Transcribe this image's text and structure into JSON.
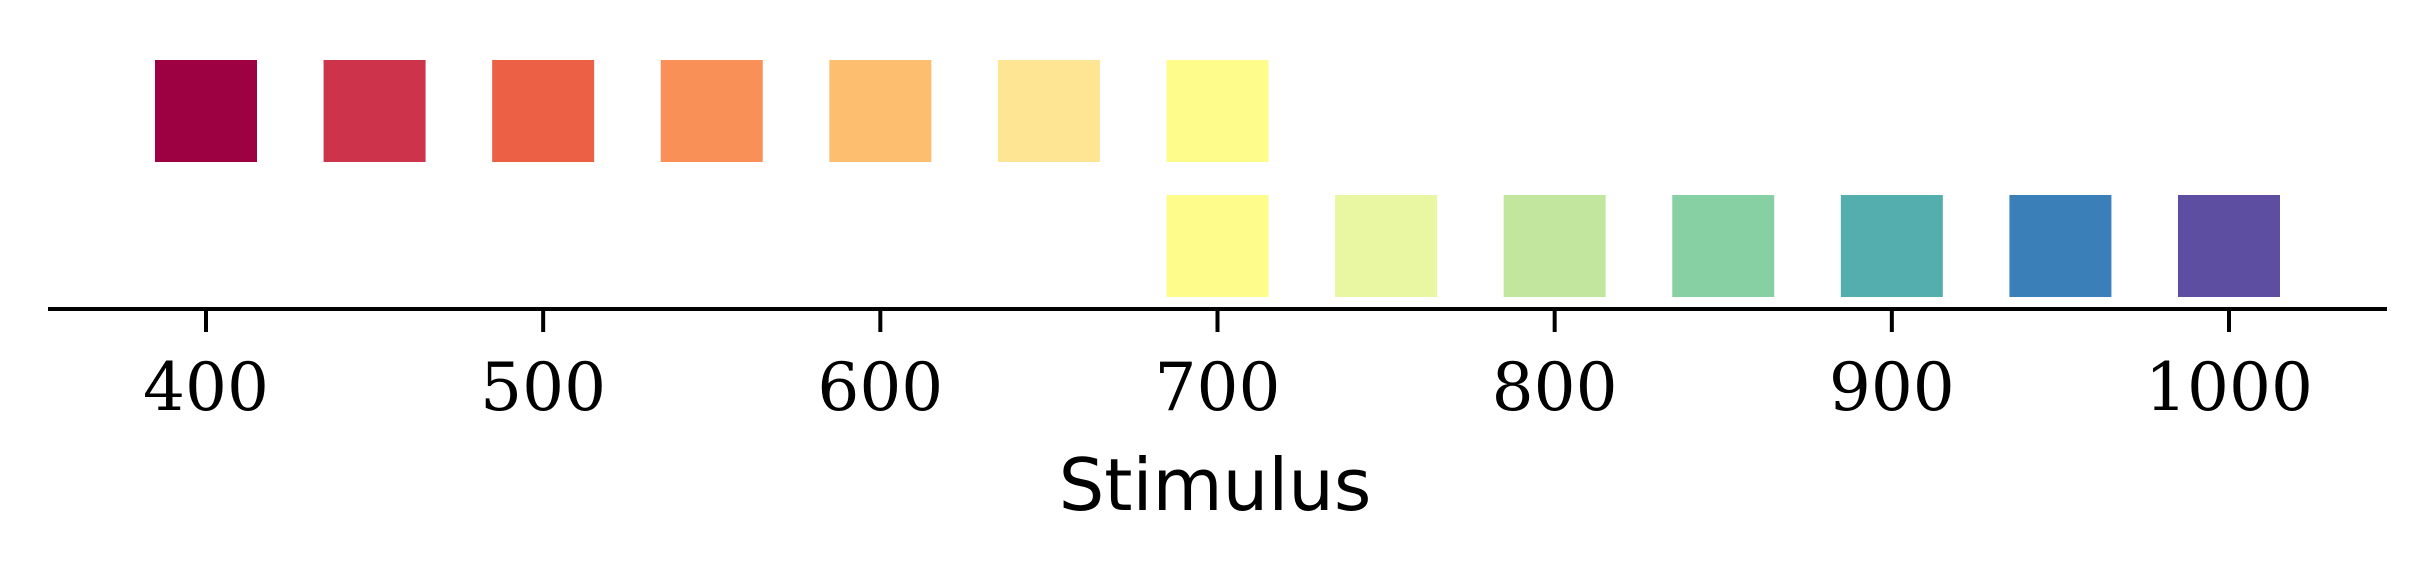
{
  "chart_data": {
    "type": "scatter",
    "title": "",
    "xlabel": "Stimulus",
    "ylabel": "",
    "xlim": [
      350,
      1050
    ],
    "ylim": [
      0,
      2
    ],
    "grid": false,
    "xticks": [
      400,
      500,
      600,
      700,
      800,
      900,
      1000
    ],
    "xtick_labels": [
      "400",
      "500",
      "600",
      "700",
      "800",
      "900",
      "1000"
    ],
    "series": [
      {
        "row": 2,
        "x": [
          400,
          450,
          500,
          550,
          600,
          650,
          700
        ],
        "colors": [
          "#9e0142",
          "#cd344c",
          "#ec6046",
          "#f99058",
          "#febe70",
          "#fee593",
          "#fefc8a"
        ]
      },
      {
        "row": 1,
        "x": [
          700,
          750,
          800,
          850,
          900,
          950,
          1000
        ],
        "colors": [
          "#fefc8a",
          "#e9f7a2",
          "#c3e69f",
          "#87d0a4",
          "#55aeae",
          "#3a7fb8",
          "#5e4ea1"
        ]
      }
    ]
  }
}
